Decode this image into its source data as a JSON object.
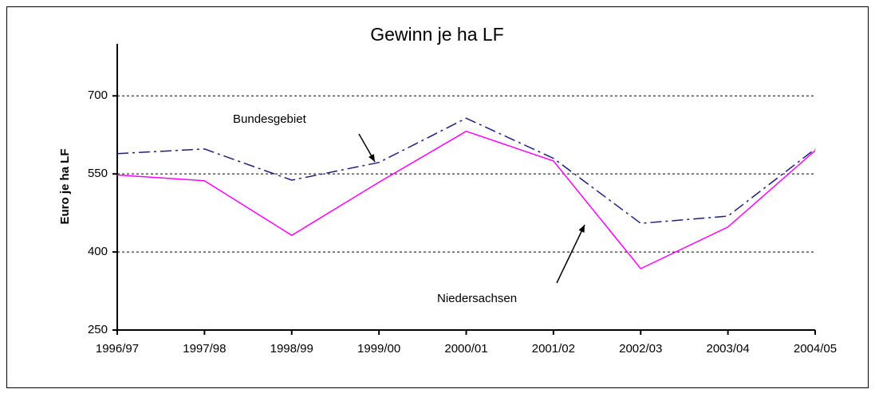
{
  "chart_data": {
    "type": "line",
    "title": "Gewinn je ha LF",
    "y_label": "Euro je ha LF",
    "categories": [
      "1996/97",
      "1997/98",
      "1998/99",
      "1999/00",
      "2000/01",
      "2001/02",
      "2002/03",
      "2003/04",
      "2004/05"
    ],
    "series": [
      {
        "name": "Bundesgebiet",
        "color": "#1f1f7a",
        "dash": "dashdot",
        "values": [
          589,
          598,
          538,
          572,
          657,
          580,
          455,
          469,
          598
        ]
      },
      {
        "name": "Niedersachsen",
        "color": "#ff00ff",
        "dash": "solid",
        "values": [
          548,
          537,
          432,
          534,
          632,
          575,
          368,
          448,
          595
        ]
      }
    ],
    "ylim": [
      250,
      800
    ],
    "yticks": [
      250,
      400,
      550,
      700
    ],
    "grid": true
  }
}
